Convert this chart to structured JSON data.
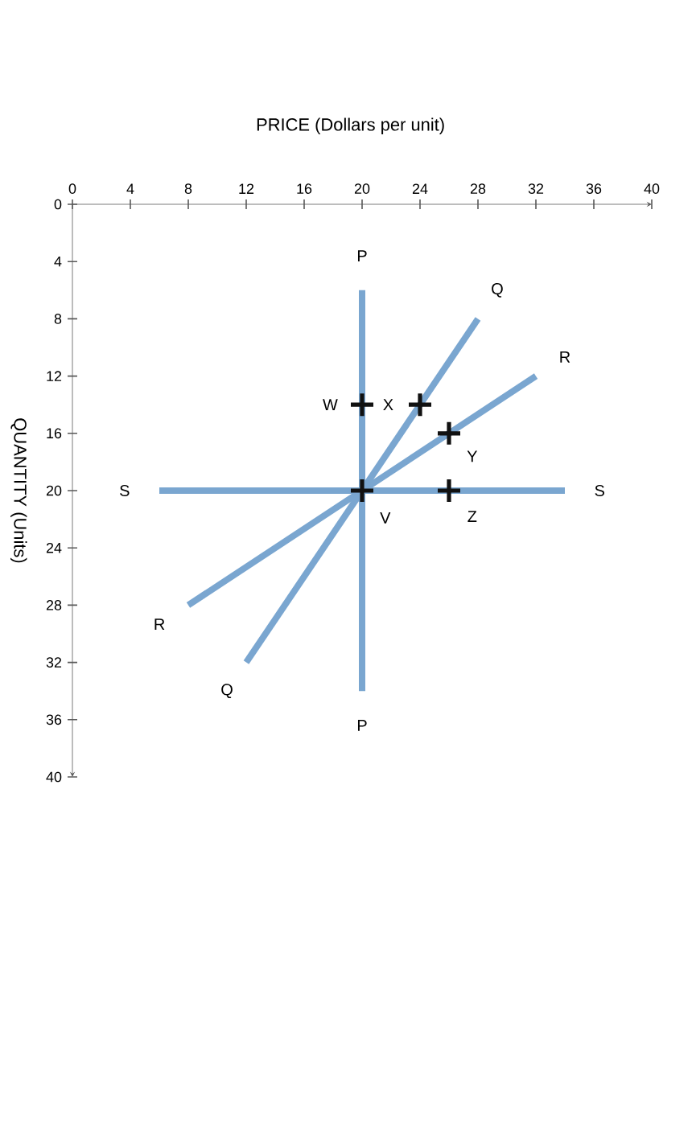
{
  "chart_data": {
    "type": "line",
    "xlabel": "PRICE (Dollars per unit)",
    "ylabel": "QUANTITY (Units)",
    "xlim": [
      0,
      40
    ],
    "ylim": [
      40,
      0
    ],
    "xticks": [
      0,
      4,
      8,
      12,
      16,
      20,
      24,
      28,
      32,
      36,
      40
    ],
    "yticks": [
      0,
      4,
      8,
      12,
      16,
      20,
      24,
      28,
      32,
      36,
      40
    ],
    "grid": false,
    "line_style": "solid",
    "series": [
      {
        "name": "S",
        "color": "#7aa6d0",
        "x": [
          6,
          34
        ],
        "values": [
          20,
          20
        ]
      },
      {
        "name": "P",
        "color": "#7aa6d0",
        "x": [
          20,
          20
        ],
        "values": [
          6,
          34
        ]
      },
      {
        "name": "R",
        "color": "#7aa6d0",
        "x": [
          32,
          8
        ],
        "values": [
          12,
          28
        ]
      },
      {
        "name": "Q",
        "color": "#7aa6d0",
        "x": [
          28,
          12
        ],
        "values": [
          8,
          32
        ]
      },
      {
        "type": "scatter",
        "color": "#111111",
        "marker": "cross",
        "x": [
          20,
          24,
          26,
          26,
          20
        ],
        "values": [
          14,
          14,
          16,
          20,
          20
        ]
      }
    ],
    "annotations": [
      {
        "text": "W",
        "x": 20,
        "y": 14
      },
      {
        "text": "X",
        "x": 24,
        "y": 14
      },
      {
        "text": "Y",
        "x": 26,
        "y": 16
      },
      {
        "text": "Z",
        "x": 26,
        "y": 20
      },
      {
        "text": "V",
        "x": 20,
        "y": 20
      }
    ]
  }
}
